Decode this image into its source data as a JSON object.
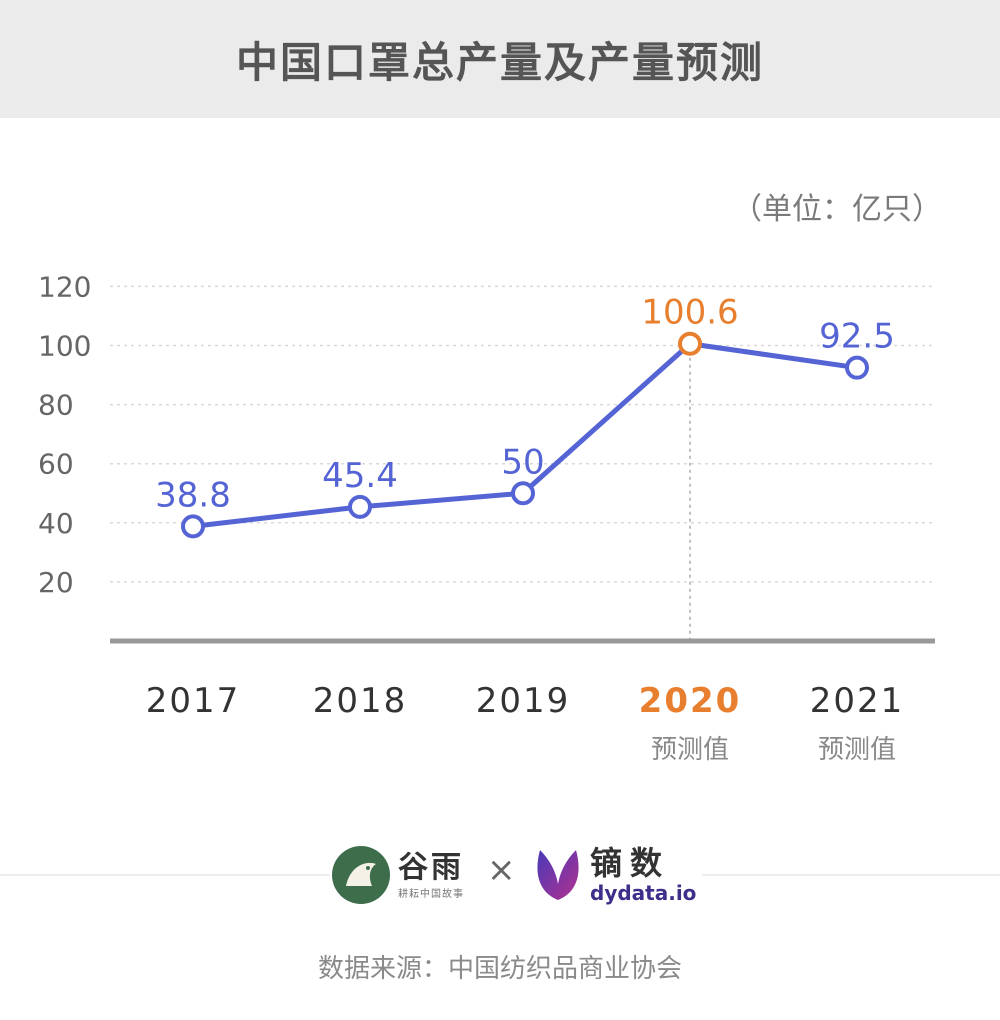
{
  "header": {
    "title": "中国口罩总产量及产量预测"
  },
  "unit_label": "（单位：亿只）",
  "chart_data": {
    "type": "line",
    "title": "中国口罩总产量及产量预测",
    "unit": "（单位：亿只）",
    "categories": [
      "2017",
      "2018",
      "2019",
      "2020",
      "2021"
    ],
    "category_notes": [
      "",
      "",
      "",
      "预测值",
      "预测值"
    ],
    "highlight_index": 3,
    "series": [
      {
        "values": [
          38.8,
          45.4,
          50,
          100.6,
          92.5
        ],
        "labels": [
          "38.8",
          "45.4",
          "50",
          "100.6",
          "92.5"
        ]
      }
    ],
    "y_ticks": [
      "20",
      "40",
      "60",
      "80",
      "100",
      "120"
    ],
    "ylim": [
      0,
      120
    ],
    "grid": true,
    "colors": {
      "line": "#5564d4",
      "highlight": "#e87f2e",
      "tick": "#666666",
      "grid": "#d9d9d9",
      "axis": "#999999"
    }
  },
  "footer": {
    "logo_left_name": "谷雨",
    "logo_left_sub": "耕耘中国故事",
    "separator": "×",
    "logo_right_name": "镝数",
    "logo_right_sub": "dydata.io",
    "source": "数据来源：中国纺织品商业协会"
  }
}
